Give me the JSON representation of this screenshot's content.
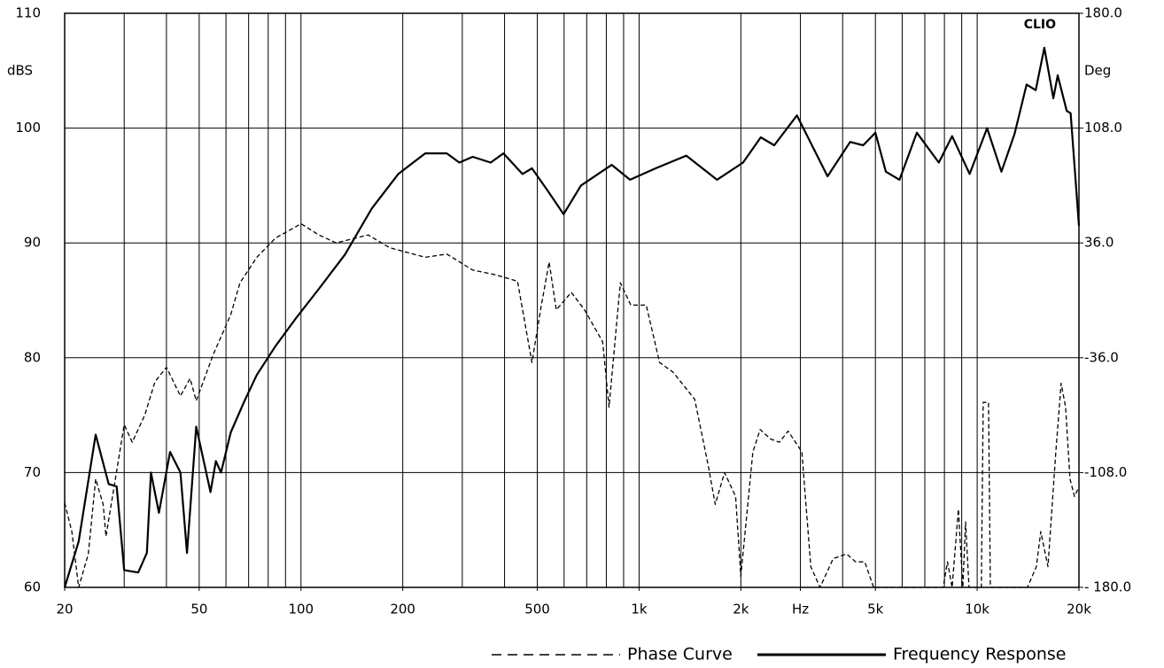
{
  "chart_data": {
    "type": "line",
    "annotation": "CLIO",
    "ylabel": "dBS",
    "y2label": "Deg",
    "xlog": true,
    "grid": true,
    "legend": "bottom-right",
    "xlim": [
      20,
      20000
    ],
    "xticks": [
      20,
      50,
      100,
      200,
      500,
      {
        "value": 1000,
        "label": "1k"
      },
      {
        "value": 2000,
        "label": "2k"
      },
      {
        "value": 3000,
        "label": "Hz"
      },
      {
        "value": 5000,
        "label": "5k"
      },
      {
        "value": 10000,
        "label": "10k"
      },
      {
        "value": 20000,
        "label": "20k"
      }
    ],
    "xgrid": [
      30,
      40,
      50,
      60,
      70,
      80,
      90,
      100,
      200,
      300,
      400,
      500,
      600,
      700,
      800,
      900,
      1000,
      2000,
      3000,
      4000,
      5000,
      6000,
      7000,
      8000,
      9000,
      10000,
      20000
    ],
    "ylim": [
      60,
      110
    ],
    "yticks": [
      60,
      70,
      80,
      90,
      100,
      110
    ],
    "y2lim": [
      -180,
      180
    ],
    "y2ticks": [
      {
        "value": 180,
        "label": "180.0"
      },
      {
        "value": 108,
        "label": "108.0"
      },
      {
        "value": 36,
        "label": "36.0"
      },
      {
        "value": -36,
        "label": "-36.0"
      },
      {
        "value": -108,
        "label": "-108.0"
      },
      {
        "value": -180,
        "label": "- 180.0"
      }
    ],
    "series": [
      {
        "name": "Phase Curve",
        "color": "#000000",
        "dash": true,
        "axis": "y2",
        "x": [
          20,
          21,
          22,
          23.5,
          24.7,
          26,
          26.5,
          28,
          30,
          31.7,
          34.5,
          37,
          40,
          44,
          47,
          49,
          55,
          62,
          66,
          74,
          84,
          100,
          113,
          127,
          158,
          183,
          233,
          270,
          322,
          376,
          437,
          482,
          511,
          542,
          569,
          630,
          690,
          780,
          815,
          880,
          945,
          1050,
          1150,
          1260,
          1460,
          1600,
          1680,
          1790,
          1930,
          2000,
          2170,
          2280,
          2450,
          2600,
          2760,
          3030,
          3220,
          3430,
          3750,
          4110,
          4370,
          4650,
          4940,
          7930,
          8170,
          8430,
          8800,
          9070,
          9240,
          9460,
          10290,
          10420,
          10800,
          10940,
          14080,
          14960,
          15420,
          16190,
          17090,
          17720,
          18260,
          18820,
          19400,
          20000
        ],
        "values": [
          -127,
          -145,
          -180,
          -159,
          -112,
          -128,
          -148,
          -117,
          -78,
          -89,
          -72,
          -51,
          -42,
          -60,
          -49,
          -63,
          -34,
          -9,
          11,
          27,
          39,
          48,
          41,
          36,
          41,
          33,
          27,
          29,
          19,
          16,
          12,
          -39,
          -6,
          24,
          -6,
          5,
          -6,
          -26,
          -67,
          11,
          -3,
          -3,
          -39,
          -45,
          -62,
          -103,
          -128,
          -108,
          -123,
          -173,
          -95,
          -81,
          -87,
          -89,
          -82,
          -95,
          -167,
          -180,
          -162,
          -159,
          -164,
          -164,
          -180,
          -180,
          -164,
          -180,
          -131,
          -180,
          -139,
          -180,
          -180,
          -64,
          -64,
          -180,
          -180,
          -167,
          -145,
          -167,
          -95,
          -52,
          -67,
          -112,
          -123,
          -117
        ]
      },
      {
        "name": "Frequency Response",
        "color": "#000000",
        "dash": false,
        "axis": "y",
        "x": [
          20,
          22,
          24.7,
          27,
          28.5,
          30,
          33,
          35,
          36,
          38,
          41,
          44,
          46,
          49,
          54,
          56,
          58,
          62,
          68,
          74,
          84,
          97,
          113,
          135,
          162,
          194,
          233,
          270,
          294,
          322,
          364,
          397,
          452,
          482,
          538,
          598,
          673,
          830,
          940,
          1119,
          1380,
          1700,
          2030,
          2290,
          2510,
          2930,
          3610,
          4210,
          4600,
          5000,
          5370,
          5890,
          6630,
          7700,
          8430,
          9500,
          10700,
          11800,
          12900,
          14000,
          14900,
          15800,
          16800,
          17300,
          18400,
          18900,
          20000
        ],
        "values": [
          60,
          64,
          73.3,
          69,
          68.8,
          61.5,
          61.3,
          63,
          70,
          66.5,
          71.8,
          70,
          63,
          74,
          68.3,
          71,
          70,
          73.5,
          76.2,
          78.5,
          81,
          83.5,
          86,
          89,
          93,
          96,
          97.8,
          97.8,
          97,
          97.5,
          97,
          97.8,
          96,
          96.5,
          94.5,
          92.5,
          95,
          96.8,
          95.5,
          96.5,
          97.6,
          95.5,
          97,
          99.2,
          98.5,
          101.1,
          95.8,
          98.8,
          98.5,
          99.6,
          96.2,
          95.5,
          99.6,
          97,
          99.3,
          96,
          100,
          96.2,
          99.5,
          103.8,
          103.3,
          107,
          102.6,
          104.6,
          101.5,
          101.3,
          91.5
        ]
      }
    ]
  }
}
